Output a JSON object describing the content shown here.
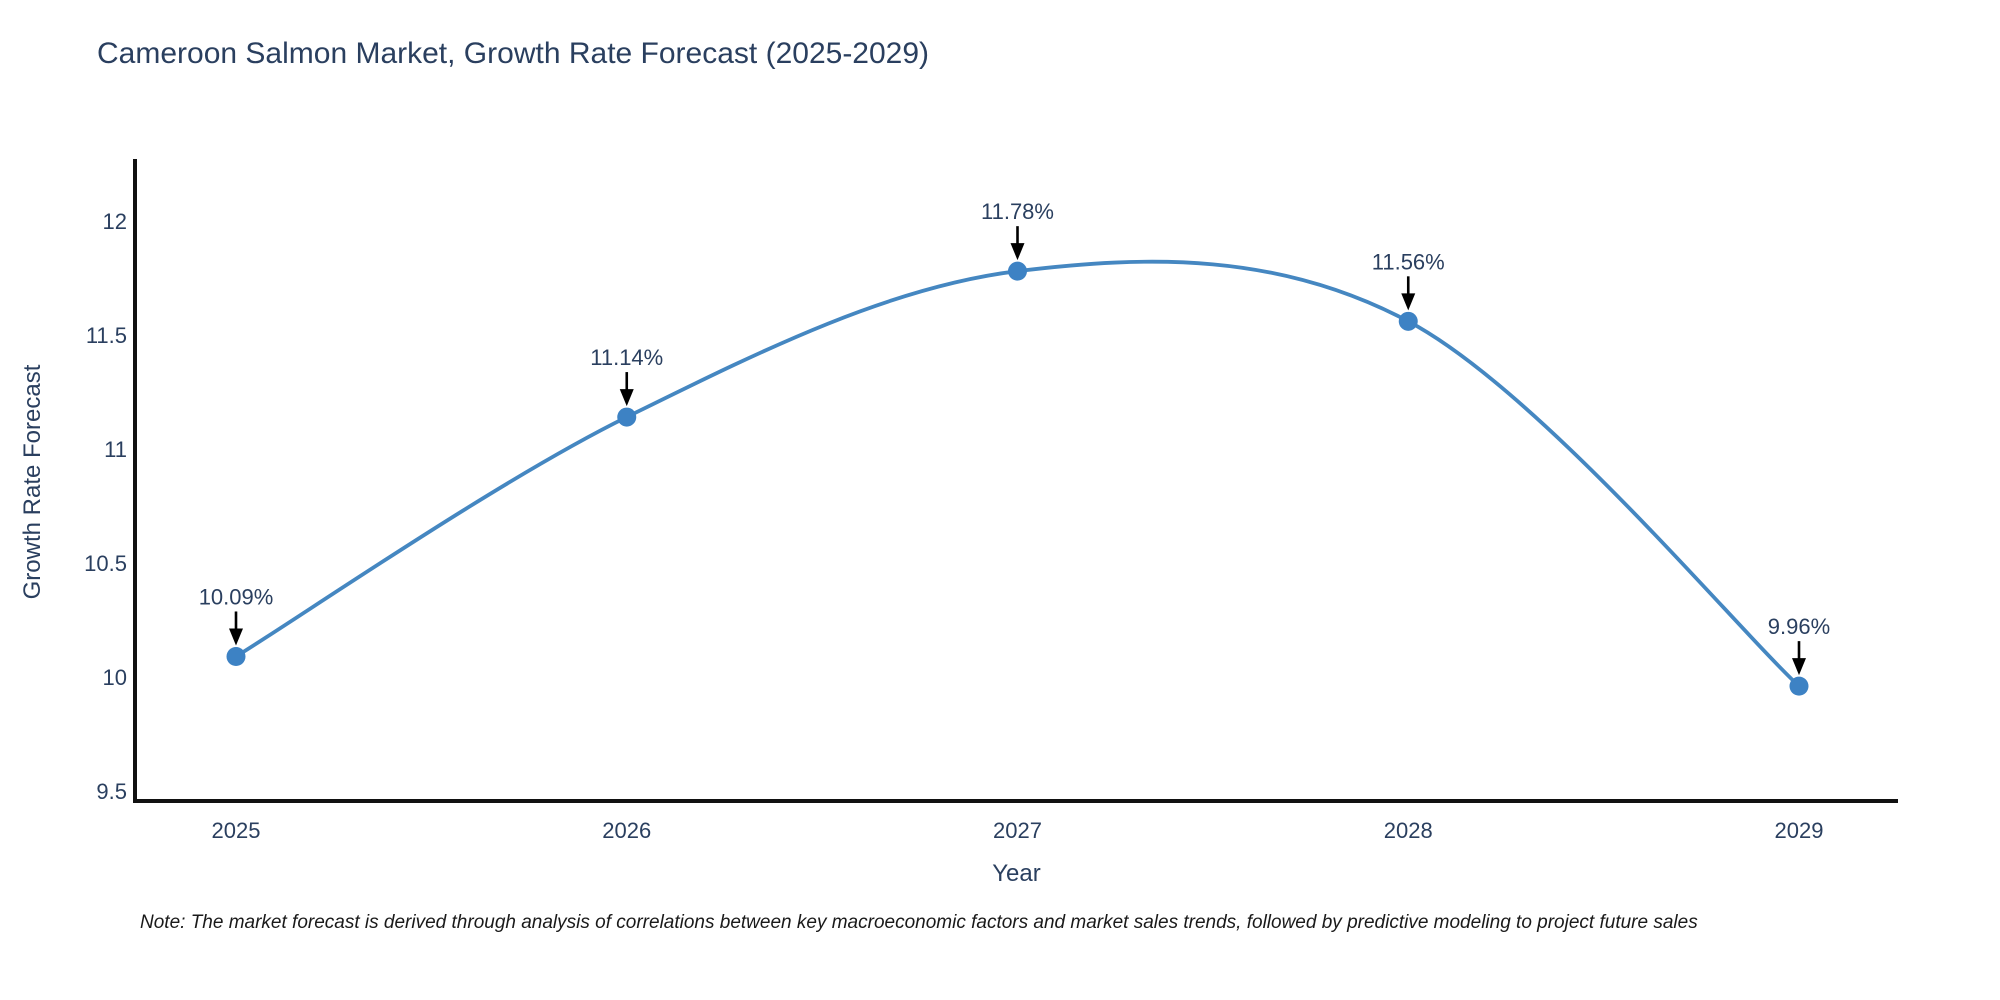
{
  "chart_data": {
    "type": "line",
    "title": "Cameroon Salmon Market, Growth Rate Forecast (2025-2029)",
    "xlabel": "Year",
    "ylabel": "Growth Rate Forecast",
    "x": [
      2025,
      2026,
      2027,
      2028,
      2029
    ],
    "values": [
      10.09,
      11.14,
      11.78,
      11.56,
      9.96
    ],
    "point_labels": [
      "10.09%",
      "11.14%",
      "11.78%",
      "11.56%",
      "9.96%"
    ],
    "xtick_labels": [
      "2025",
      "2026",
      "2027",
      "2028",
      "2029"
    ],
    "yticks": [
      9.5,
      10,
      10.5,
      11,
      11.5,
      12
    ],
    "ytick_labels": [
      "9.5",
      "10",
      "10.5",
      "11",
      "11.5",
      "12"
    ],
    "ylim": [
      9.45,
      12.3
    ],
    "grid": false,
    "legend_position": "none",
    "line_shape": "spline",
    "colors": {
      "line": "#4587c1",
      "marker": "#3d82c4",
      "axis": "#111111",
      "text": "#2a3f5f",
      "arrow": "#000000"
    }
  },
  "footnote": "Note: The market forecast is derived through analysis of correlations between key macroeconomic factors and market sales trends, followed by predictive modeling to project future sales"
}
